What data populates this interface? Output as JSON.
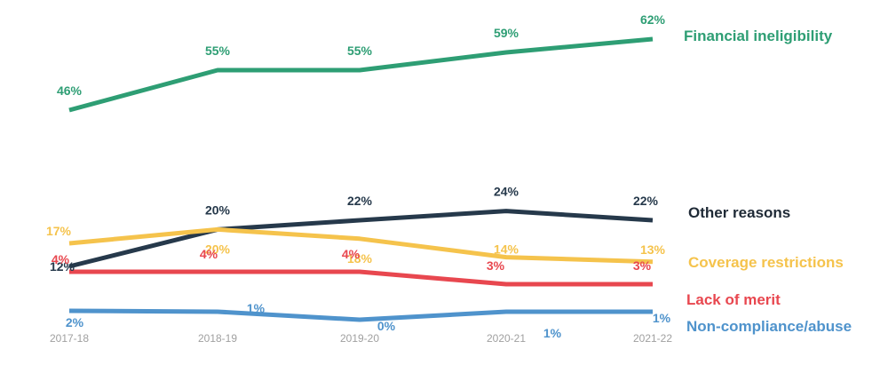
{
  "chart_data": {
    "type": "line",
    "categories": [
      "2017-18",
      "2018-19",
      "2019-20",
      "2020-21",
      "2021-22"
    ],
    "series": [
      {
        "name": "Financial ineligibility",
        "color": "#2e9e74",
        "values": [
          46,
          55,
          55,
          59,
          62
        ],
        "labels": [
          "46%",
          "55%",
          "55%",
          "59%",
          "62%"
        ]
      },
      {
        "name": "Other reasons",
        "color": "#26394b",
        "values": [
          12,
          20,
          22,
          24,
          22
        ],
        "labels": [
          "12%",
          "20%",
          "22%",
          "24%",
          "22%"
        ]
      },
      {
        "name": "Coverage restrictions",
        "color": "#f5c34c",
        "values": [
          17,
          20,
          18,
          14,
          13
        ],
        "labels": [
          "17%",
          "20%",
          "18%",
          "14%",
          "13%"
        ]
      },
      {
        "name": "Lack of merit",
        "color": "#e8474f",
        "values": [
          4,
          4,
          4,
          3,
          3
        ],
        "labels": [
          "4%",
          "4%",
          "4%",
          "3%",
          "3%"
        ]
      },
      {
        "name": "Non-compliance/abuse",
        "color": "#4f93cc",
        "values": [
          2,
          1,
          0,
          1,
          1
        ],
        "labels": [
          "2%",
          "1%",
          "0%",
          "1%",
          "1%"
        ]
      }
    ],
    "legend": "right, labels at line ends",
    "grid": false
  }
}
